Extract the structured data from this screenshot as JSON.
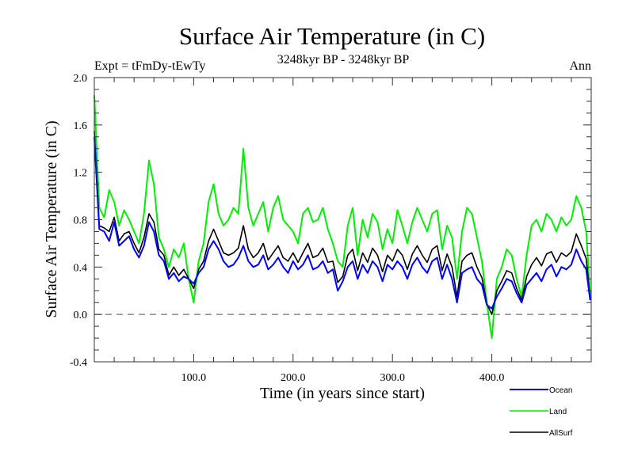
{
  "chart_data": {
    "type": "line",
    "title": "Surface Air Temperature (in C)",
    "subtitle_left": "Expt = tFmDy-tEwTy",
    "subtitle_center": "3248kyr BP - 3248kyr BP",
    "subtitle_right": "Ann",
    "xlabel": "Time (in years since start)",
    "ylabel": "Surface Air Temperature (in C)",
    "xlim": [
      0,
      500
    ],
    "ylim": [
      -0.4,
      2.0
    ],
    "x_ticks": [
      100,
      200,
      300,
      400
    ],
    "x_tick_labels": [
      "100.0",
      "200.0",
      "300.0",
      "400.0"
    ],
    "x_minor_step": 20,
    "y_ticks": [
      -0.4,
      0.0,
      0.4,
      0.8,
      1.2,
      1.6,
      2.0
    ],
    "y_tick_labels": [
      "-0.4",
      "0.0",
      "0.4",
      "0.8",
      "1.2",
      "1.6",
      "2.0"
    ],
    "y_minor_step": 0.1,
    "reference_line": {
      "y": 0.0,
      "style": "dashed",
      "color": "#555555"
    },
    "grid": false,
    "legend_position": "bottom-right",
    "x": [
      0,
      5,
      10,
      15,
      20,
      25,
      30,
      35,
      40,
      45,
      50,
      55,
      60,
      65,
      70,
      75,
      80,
      85,
      90,
      95,
      100,
      105,
      110,
      115,
      120,
      125,
      130,
      135,
      140,
      145,
      150,
      155,
      160,
      165,
      170,
      175,
      180,
      185,
      190,
      195,
      200,
      205,
      210,
      215,
      220,
      225,
      230,
      235,
      240,
      245,
      250,
      255,
      260,
      265,
      270,
      275,
      280,
      285,
      290,
      295,
      300,
      305,
      310,
      315,
      320,
      325,
      330,
      335,
      340,
      345,
      350,
      355,
      360,
      365,
      370,
      375,
      380,
      385,
      390,
      395,
      400,
      405,
      410,
      415,
      420,
      425,
      430,
      435,
      440,
      445,
      450,
      455,
      460,
      465,
      470,
      475,
      480,
      485,
      490,
      495,
      499
    ],
    "series": [
      {
        "name": "Ocean",
        "color": "#0000ff",
        "values": [
          1.5,
          0.72,
          0.7,
          0.62,
          0.78,
          0.58,
          0.62,
          0.66,
          0.55,
          0.48,
          0.58,
          0.78,
          0.7,
          0.5,
          0.45,
          0.3,
          0.35,
          0.28,
          0.32,
          0.3,
          0.26,
          0.35,
          0.4,
          0.55,
          0.62,
          0.55,
          0.45,
          0.4,
          0.42,
          0.48,
          0.58,
          0.45,
          0.4,
          0.42,
          0.5,
          0.38,
          0.42,
          0.48,
          0.4,
          0.35,
          0.45,
          0.38,
          0.42,
          0.5,
          0.38,
          0.4,
          0.45,
          0.35,
          0.38,
          0.2,
          0.28,
          0.4,
          0.45,
          0.3,
          0.42,
          0.35,
          0.45,
          0.4,
          0.28,
          0.42,
          0.38,
          0.45,
          0.4,
          0.3,
          0.42,
          0.48,
          0.4,
          0.35,
          0.45,
          0.48,
          0.3,
          0.42,
          0.3,
          0.1,
          0.35,
          0.38,
          0.4,
          0.3,
          0.25,
          0.08,
          0.05,
          0.15,
          0.22,
          0.3,
          0.28,
          0.18,
          0.1,
          0.25,
          0.3,
          0.35,
          0.28,
          0.38,
          0.42,
          0.32,
          0.4,
          0.38,
          0.42,
          0.55,
          0.45,
          0.38,
          0.12
        ]
      },
      {
        "name": "Land",
        "color": "#00ee00",
        "values": [
          1.85,
          0.9,
          0.82,
          1.05,
          0.95,
          0.75,
          0.88,
          0.8,
          0.7,
          0.6,
          0.85,
          1.3,
          1.1,
          0.65,
          0.55,
          0.4,
          0.55,
          0.48,
          0.6,
          0.3,
          0.1,
          0.45,
          0.6,
          0.95,
          1.1,
          0.85,
          0.75,
          0.8,
          0.9,
          0.85,
          1.4,
          0.9,
          0.75,
          0.85,
          0.95,
          0.7,
          0.9,
          1.0,
          0.8,
          0.75,
          0.7,
          0.6,
          0.85,
          0.9,
          0.78,
          0.8,
          0.9,
          0.72,
          0.6,
          0.45,
          0.4,
          0.75,
          0.9,
          0.5,
          0.8,
          0.65,
          0.85,
          0.78,
          0.55,
          0.72,
          0.6,
          0.88,
          0.75,
          0.6,
          0.78,
          0.9,
          0.8,
          0.7,
          0.85,
          0.88,
          0.55,
          0.75,
          0.65,
          0.3,
          0.7,
          0.9,
          0.85,
          0.65,
          0.45,
          0.1,
          -0.2,
          0.3,
          0.4,
          0.55,
          0.5,
          0.3,
          0.15,
          0.5,
          0.75,
          0.8,
          0.7,
          0.85,
          0.8,
          0.7,
          0.82,
          0.75,
          0.8,
          1.0,
          0.9,
          0.7,
          0.15
        ]
      },
      {
        "name": "AllSurf",
        "color": "#000000",
        "values": [
          1.55,
          0.75,
          0.73,
          0.7,
          0.82,
          0.62,
          0.68,
          0.7,
          0.6,
          0.52,
          0.65,
          0.85,
          0.78,
          0.55,
          0.5,
          0.33,
          0.4,
          0.33,
          0.38,
          0.3,
          0.22,
          0.38,
          0.45,
          0.62,
          0.72,
          0.62,
          0.52,
          0.5,
          0.52,
          0.56,
          0.75,
          0.55,
          0.48,
          0.52,
          0.6,
          0.46,
          0.52,
          0.58,
          0.48,
          0.45,
          0.52,
          0.44,
          0.52,
          0.6,
          0.48,
          0.5,
          0.56,
          0.44,
          0.45,
          0.27,
          0.32,
          0.5,
          0.55,
          0.37,
          0.52,
          0.44,
          0.56,
          0.5,
          0.36,
          0.5,
          0.45,
          0.55,
          0.5,
          0.38,
          0.51,
          0.58,
          0.5,
          0.44,
          0.55,
          0.58,
          0.37,
          0.51,
          0.4,
          0.15,
          0.45,
          0.5,
          0.52,
          0.4,
          0.31,
          0.09,
          0.0,
          0.2,
          0.28,
          0.37,
          0.35,
          0.22,
          0.12,
          0.32,
          0.42,
          0.48,
          0.41,
          0.51,
          0.53,
          0.44,
          0.52,
          0.49,
          0.53,
          0.68,
          0.58,
          0.47,
          0.13
        ]
      }
    ]
  },
  "legend": {
    "items": [
      {
        "label": "Ocean",
        "color": "#0000ff"
      },
      {
        "label": "Land",
        "color": "#00ee00"
      },
      {
        "label": "AllSurf",
        "color": "#000000"
      }
    ]
  }
}
